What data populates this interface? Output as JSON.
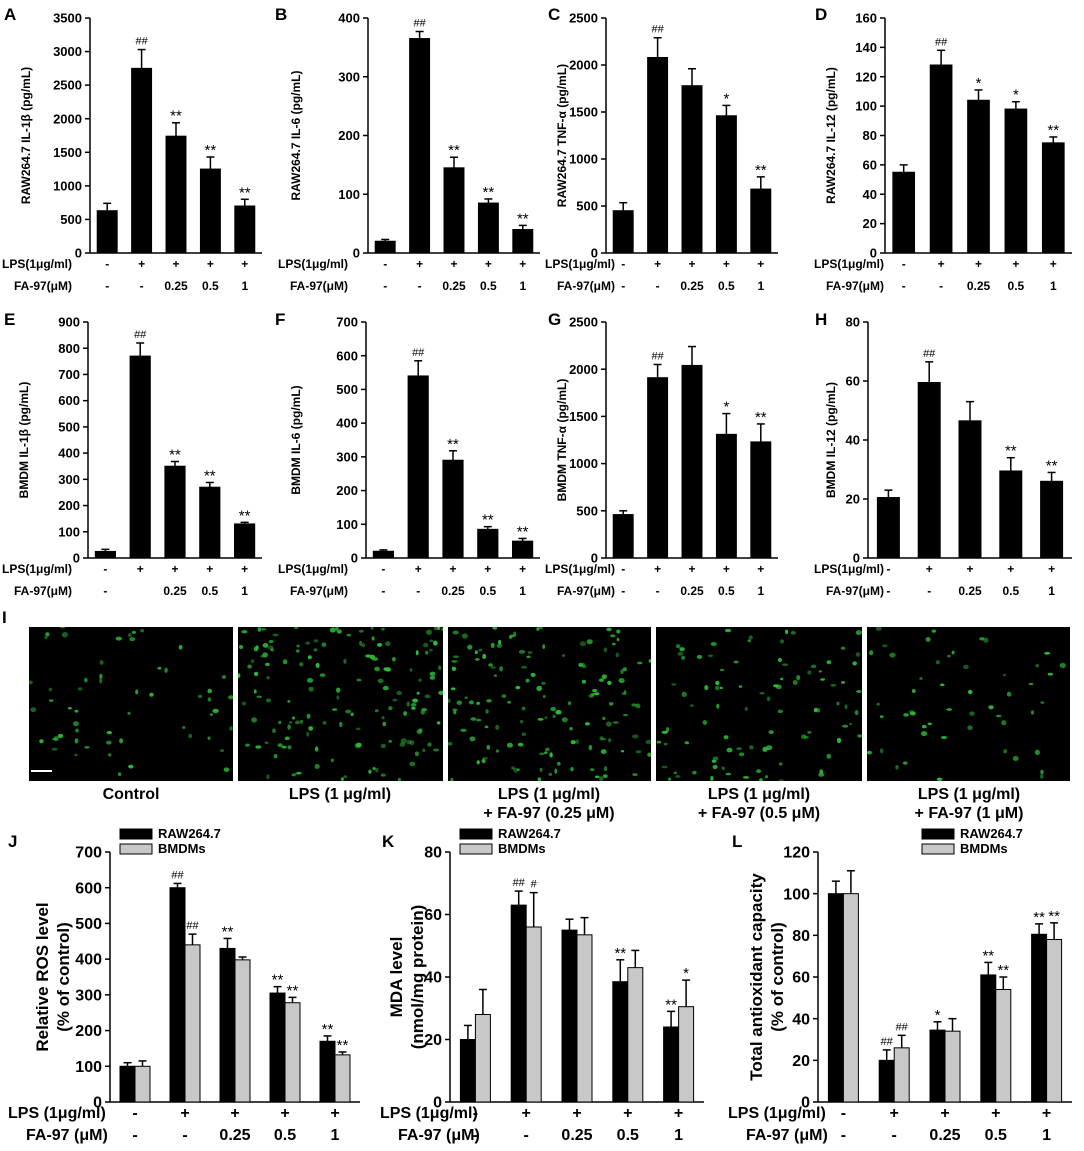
{
  "panel_I": {
    "letter": "I",
    "images": [
      {
        "label_line1": "Control",
        "label_line2": ""
      },
      {
        "label_line1": "LPS (1 μg/ml)",
        "label_line2": ""
      },
      {
        "label_line1": "LPS (1 μg/ml)",
        "label_line2": "+ FA-97 (0.25 μM)"
      },
      {
        "label_line1": "LPS (1 μg/ml)",
        "label_line2": "+ FA-97 (0.5 μM)"
      },
      {
        "label_line1": "LPS (1 μg/ml)",
        "label_line2": "+ FA-97 (1 μM)"
      }
    ],
    "fluorescence_color": "#2dbb3a"
  },
  "colors": {
    "black_bar": "#000000",
    "gray_bar": "#c8c8c8"
  },
  "chart_data": [
    {
      "id": "A",
      "type": "bar",
      "ylabel": "RAW264.7 IL-1β (pg/mL)",
      "ylim": [
        0,
        3500
      ],
      "yticks": [
        0,
        500,
        1000,
        1500,
        2000,
        2500,
        3000,
        3500
      ],
      "treat_labels": [
        "LPS(1μg/ml)",
        "FA-97(μM)"
      ],
      "lps": [
        "-",
        "+",
        "+",
        "+",
        "+"
      ],
      "fa": [
        "-",
        "-",
        "0.25",
        "0.5",
        "1"
      ],
      "series": [
        {
          "values": [
            630,
            2750,
            1740,
            1250,
            700
          ],
          "errors": [
            110,
            280,
            200,
            180,
            100
          ],
          "marks": [
            "",
            "##",
            "**",
            "**",
            "**"
          ]
        }
      ]
    },
    {
      "id": "B",
      "type": "bar",
      "ylabel": "RAW264.7 IL-6 (pg/mL)",
      "ylim": [
        0,
        400
      ],
      "yticks": [
        0,
        100,
        200,
        300,
        400
      ],
      "treat_labels": [
        "LPS(1μg/ml)",
        "FA-97(μM)"
      ],
      "lps": [
        "-",
        "+",
        "+",
        "+",
        "+"
      ],
      "fa": [
        "-",
        "-",
        "0.25",
        "0.5",
        "1"
      ],
      "series": [
        {
          "values": [
            20,
            365,
            145,
            85,
            40
          ],
          "errors": [
            3,
            12,
            18,
            7,
            7
          ],
          "marks": [
            "",
            "##",
            "**",
            "**",
            "**"
          ]
        }
      ]
    },
    {
      "id": "C",
      "type": "bar",
      "ylabel": "RAW264.7 TNF-α (pg/mL)",
      "ylim": [
        0,
        2500
      ],
      "yticks": [
        0,
        500,
        1000,
        1500,
        2000,
        2500
      ],
      "treat_labels": [
        "LPS(1μg/ml)",
        "FA-97(μM)"
      ],
      "lps": [
        "-",
        "+",
        "+",
        "+",
        "+"
      ],
      "fa": [
        "-",
        "-",
        "0.25",
        "0.5",
        "1"
      ],
      "series": [
        {
          "values": [
            450,
            2080,
            1780,
            1460,
            680
          ],
          "errors": [
            85,
            210,
            180,
            110,
            130
          ],
          "marks": [
            "",
            "##",
            "",
            "*",
            "**"
          ]
        }
      ]
    },
    {
      "id": "D",
      "type": "bar",
      "ylabel": "RAW264.7 IL-12 (pg/mL)",
      "ylim": [
        0,
        160
      ],
      "yticks": [
        0,
        20,
        40,
        60,
        80,
        100,
        120,
        140,
        160
      ],
      "treat_labels": [
        "LPS(1μg/ml)",
        "FA-97(μM)"
      ],
      "lps": [
        "-",
        "+",
        "+",
        "+",
        "+"
      ],
      "fa": [
        "-",
        "-",
        "0.25",
        "0.5",
        "1"
      ],
      "series": [
        {
          "values": [
            55,
            128,
            104,
            98,
            75
          ],
          "errors": [
            5,
            10,
            7,
            5,
            4
          ],
          "marks": [
            "",
            "##",
            "*",
            "*",
            "**"
          ]
        }
      ]
    },
    {
      "id": "E",
      "type": "bar",
      "ylabel": "BMDM IL-1β (pg/mL)",
      "ylim": [
        0,
        900
      ],
      "yticks": [
        0,
        100,
        200,
        300,
        400,
        500,
        600,
        700,
        800,
        900
      ],
      "treat_labels": [
        "LPS(1μg/ml)",
        "FA-97(μM)"
      ],
      "lps": [
        "-",
        "+",
        "+",
        "+",
        "+"
      ],
      "fa": [
        "-",
        "",
        "0.25",
        "0.5",
        "1"
      ],
      "series": [
        {
          "values": [
            25,
            770,
            350,
            270,
            130
          ],
          "errors": [
            8,
            50,
            18,
            18,
            6
          ],
          "marks": [
            "",
            "##",
            "**",
            "**",
            "**"
          ]
        }
      ]
    },
    {
      "id": "F",
      "type": "bar",
      "ylabel": "BMDM IL-6 (pg/mL)",
      "ylim": [
        0,
        700
      ],
      "yticks": [
        0,
        100,
        200,
        300,
        400,
        500,
        600,
        700
      ],
      "treat_labels": [
        "LPS(1μg/ml)",
        "FA-97(μM)"
      ],
      "lps": [
        "-",
        "+",
        "+",
        "+",
        "+"
      ],
      "fa": [
        "-",
        "-",
        "0.25",
        "0.5",
        "1"
      ],
      "series": [
        {
          "values": [
            20,
            540,
            290,
            85,
            50
          ],
          "errors": [
            4,
            45,
            28,
            8,
            8
          ],
          "marks": [
            "",
            "##",
            "**",
            "**",
            "**"
          ]
        }
      ]
    },
    {
      "id": "G",
      "type": "bar",
      "ylabel": "BMDM TNF-α (pg/mL)",
      "ylim": [
        0,
        2500
      ],
      "yticks": [
        0,
        500,
        1000,
        1500,
        2000,
        2500
      ],
      "treat_labels": [
        "LPS(1μg/ml)",
        "FA-97(μM)"
      ],
      "lps": [
        "-",
        "+",
        "+",
        "+",
        "+"
      ],
      "fa": [
        "-",
        "-",
        "0.25",
        "0.5",
        "1"
      ],
      "series": [
        {
          "values": [
            460,
            1910,
            2040,
            1310,
            1230
          ],
          "errors": [
            40,
            140,
            200,
            220,
            190
          ],
          "marks": [
            "",
            "##",
            "",
            "*",
            "**"
          ]
        }
      ]
    },
    {
      "id": "H",
      "type": "bar",
      "ylabel": "BMDM IL-12 (pg/mL)",
      "ylim": [
        0,
        80
      ],
      "yticks": [
        0,
        20,
        40,
        60,
        80
      ],
      "treat_labels": [
        "LPS(1μg/ml)",
        "FA-97(μM)"
      ],
      "lps": [
        "-",
        "+",
        "+",
        "+",
        "+"
      ],
      "fa": [
        "-",
        "-",
        "0.25",
        "0.5",
        "1"
      ],
      "series": [
        {
          "values": [
            20.5,
            59.5,
            46.5,
            29.5,
            26
          ],
          "errors": [
            2.5,
            7,
            6.5,
            4.5,
            3
          ],
          "marks": [
            "",
            "##",
            "",
            "**",
            "**"
          ]
        }
      ]
    },
    {
      "id": "J",
      "type": "bar",
      "ylabel": [
        "Relative ROS level",
        "(% of control)"
      ],
      "ylim": [
        0,
        700
      ],
      "yticks": [
        0,
        100,
        200,
        300,
        400,
        500,
        600,
        700
      ],
      "treat_labels": [
        "LPS (1μg/ml)",
        "FA-97 (μM)"
      ],
      "lps": [
        "-",
        "+",
        "+",
        "+",
        "+"
      ],
      "fa": [
        "-",
        "-",
        "0.25",
        "0.5",
        "1"
      ],
      "legend": "top-left",
      "series": [
        {
          "name": "RAW264.7",
          "color": "#000000",
          "values": [
            100,
            600,
            430,
            305,
            170
          ],
          "errors": [
            10,
            12,
            28,
            18,
            15
          ],
          "marks": [
            "",
            "##",
            "**",
            "**",
            "**"
          ]
        },
        {
          "name": "BMDMs",
          "color": "#c8c8c8",
          "values": [
            100,
            440,
            398,
            278,
            132
          ],
          "errors": [
            15,
            30,
            8,
            15,
            8
          ],
          "marks": [
            "",
            "##",
            "",
            "**",
            "**"
          ]
        }
      ]
    },
    {
      "id": "K",
      "type": "bar",
      "ylabel": [
        "MDA level",
        "(nmol/mg protein)"
      ],
      "ylim": [
        0,
        80
      ],
      "yticks": [
        0,
        20,
        40,
        60,
        80
      ],
      "treat_labels": [
        "LPS (1μg/ml)",
        "FA-97 (μM)"
      ],
      "lps": [
        "-",
        "+",
        "+",
        "+",
        "+"
      ],
      "fa": [
        "-",
        "-",
        "0.25",
        "0.5",
        "1"
      ],
      "legend": "top-left",
      "series": [
        {
          "name": "RAW264.7",
          "color": "#000000",
          "values": [
            20,
            63,
            55,
            38.5,
            24
          ],
          "errors": [
            4.5,
            4.5,
            3.5,
            7,
            5
          ],
          "marks": [
            "",
            "##",
            "",
            "**",
            "**"
          ]
        },
        {
          "name": "BMDMs",
          "color": "#c8c8c8",
          "values": [
            28,
            56,
            53.5,
            43,
            30.5
          ],
          "errors": [
            8,
            11,
            5.5,
            5.5,
            8.5
          ],
          "marks": [
            "",
            "#",
            "",
            "",
            "*"
          ]
        }
      ]
    },
    {
      "id": "L",
      "type": "bar",
      "ylabel": [
        "Total antioxidant capacity",
        "(% of control)"
      ],
      "ylim": [
        0,
        120
      ],
      "yticks": [
        0,
        20,
        40,
        60,
        80,
        100,
        120
      ],
      "treat_labels": [
        "LPS (1μg/ml)",
        "FA-97 (μM)"
      ],
      "lps": [
        "-",
        "+",
        "+",
        "+",
        "+"
      ],
      "fa": [
        "-",
        "-",
        "0.25",
        "0.5",
        "1"
      ],
      "legend": "top-right",
      "series": [
        {
          "name": "RAW264.7",
          "color": "#000000",
          "values": [
            100,
            20,
            34.5,
            61,
            80.5
          ],
          "errors": [
            6,
            5,
            4,
            6,
            5
          ],
          "marks": [
            "",
            "##",
            "*",
            "**",
            "**"
          ]
        },
        {
          "name": "BMDMs",
          "color": "#c8c8c8",
          "values": [
            100,
            26,
            34,
            54,
            78
          ],
          "errors": [
            11,
            6,
            6,
            6,
            8
          ],
          "marks": [
            "",
            "##",
            "",
            "**",
            "**"
          ]
        }
      ]
    }
  ]
}
